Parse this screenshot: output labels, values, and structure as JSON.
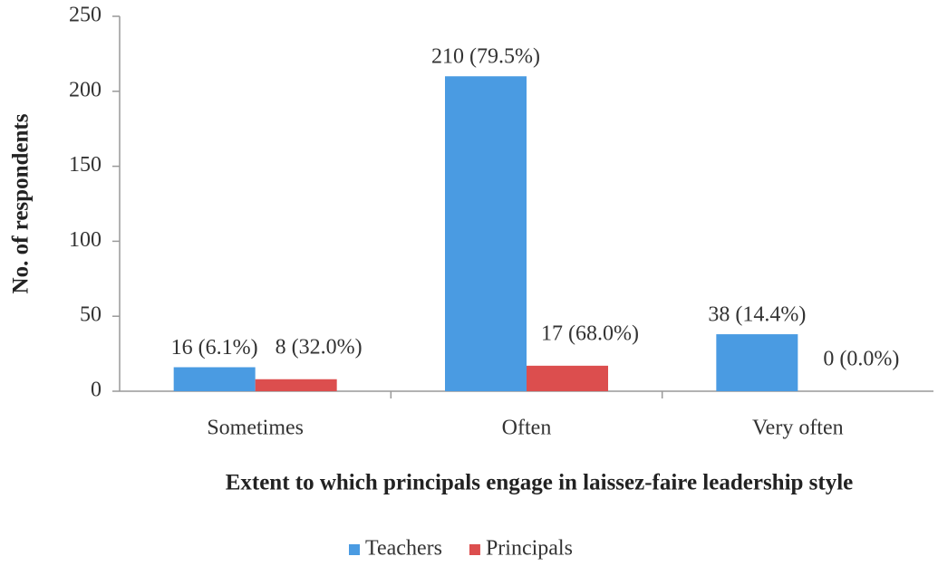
{
  "chart_data": {
    "type": "bar",
    "x_label": "Extent to which principals engage in laissez-faire leadership style",
    "y_label": "No. of respondents",
    "categories": [
      "Sometimes",
      "Often",
      "Very often"
    ],
    "series": [
      {
        "name": "Teachers",
        "color": "#4a9be2",
        "values": [
          16,
          210,
          38
        ],
        "value_labels": [
          "16 (6.1%)",
          "210 (79.5%)",
          "38 (14.4%)"
        ]
      },
      {
        "name": "Principals",
        "color": "#dc4e4e",
        "values": [
          8,
          17,
          0
        ],
        "value_labels": [
          "8 (32.0%)",
          "17 (68.0%)",
          "0 (0.0%)"
        ]
      }
    ],
    "ylim": [
      0,
      250
    ],
    "yticks": [
      0,
      50,
      100,
      150,
      200,
      250
    ],
    "grid": false,
    "legend": "bottom"
  }
}
